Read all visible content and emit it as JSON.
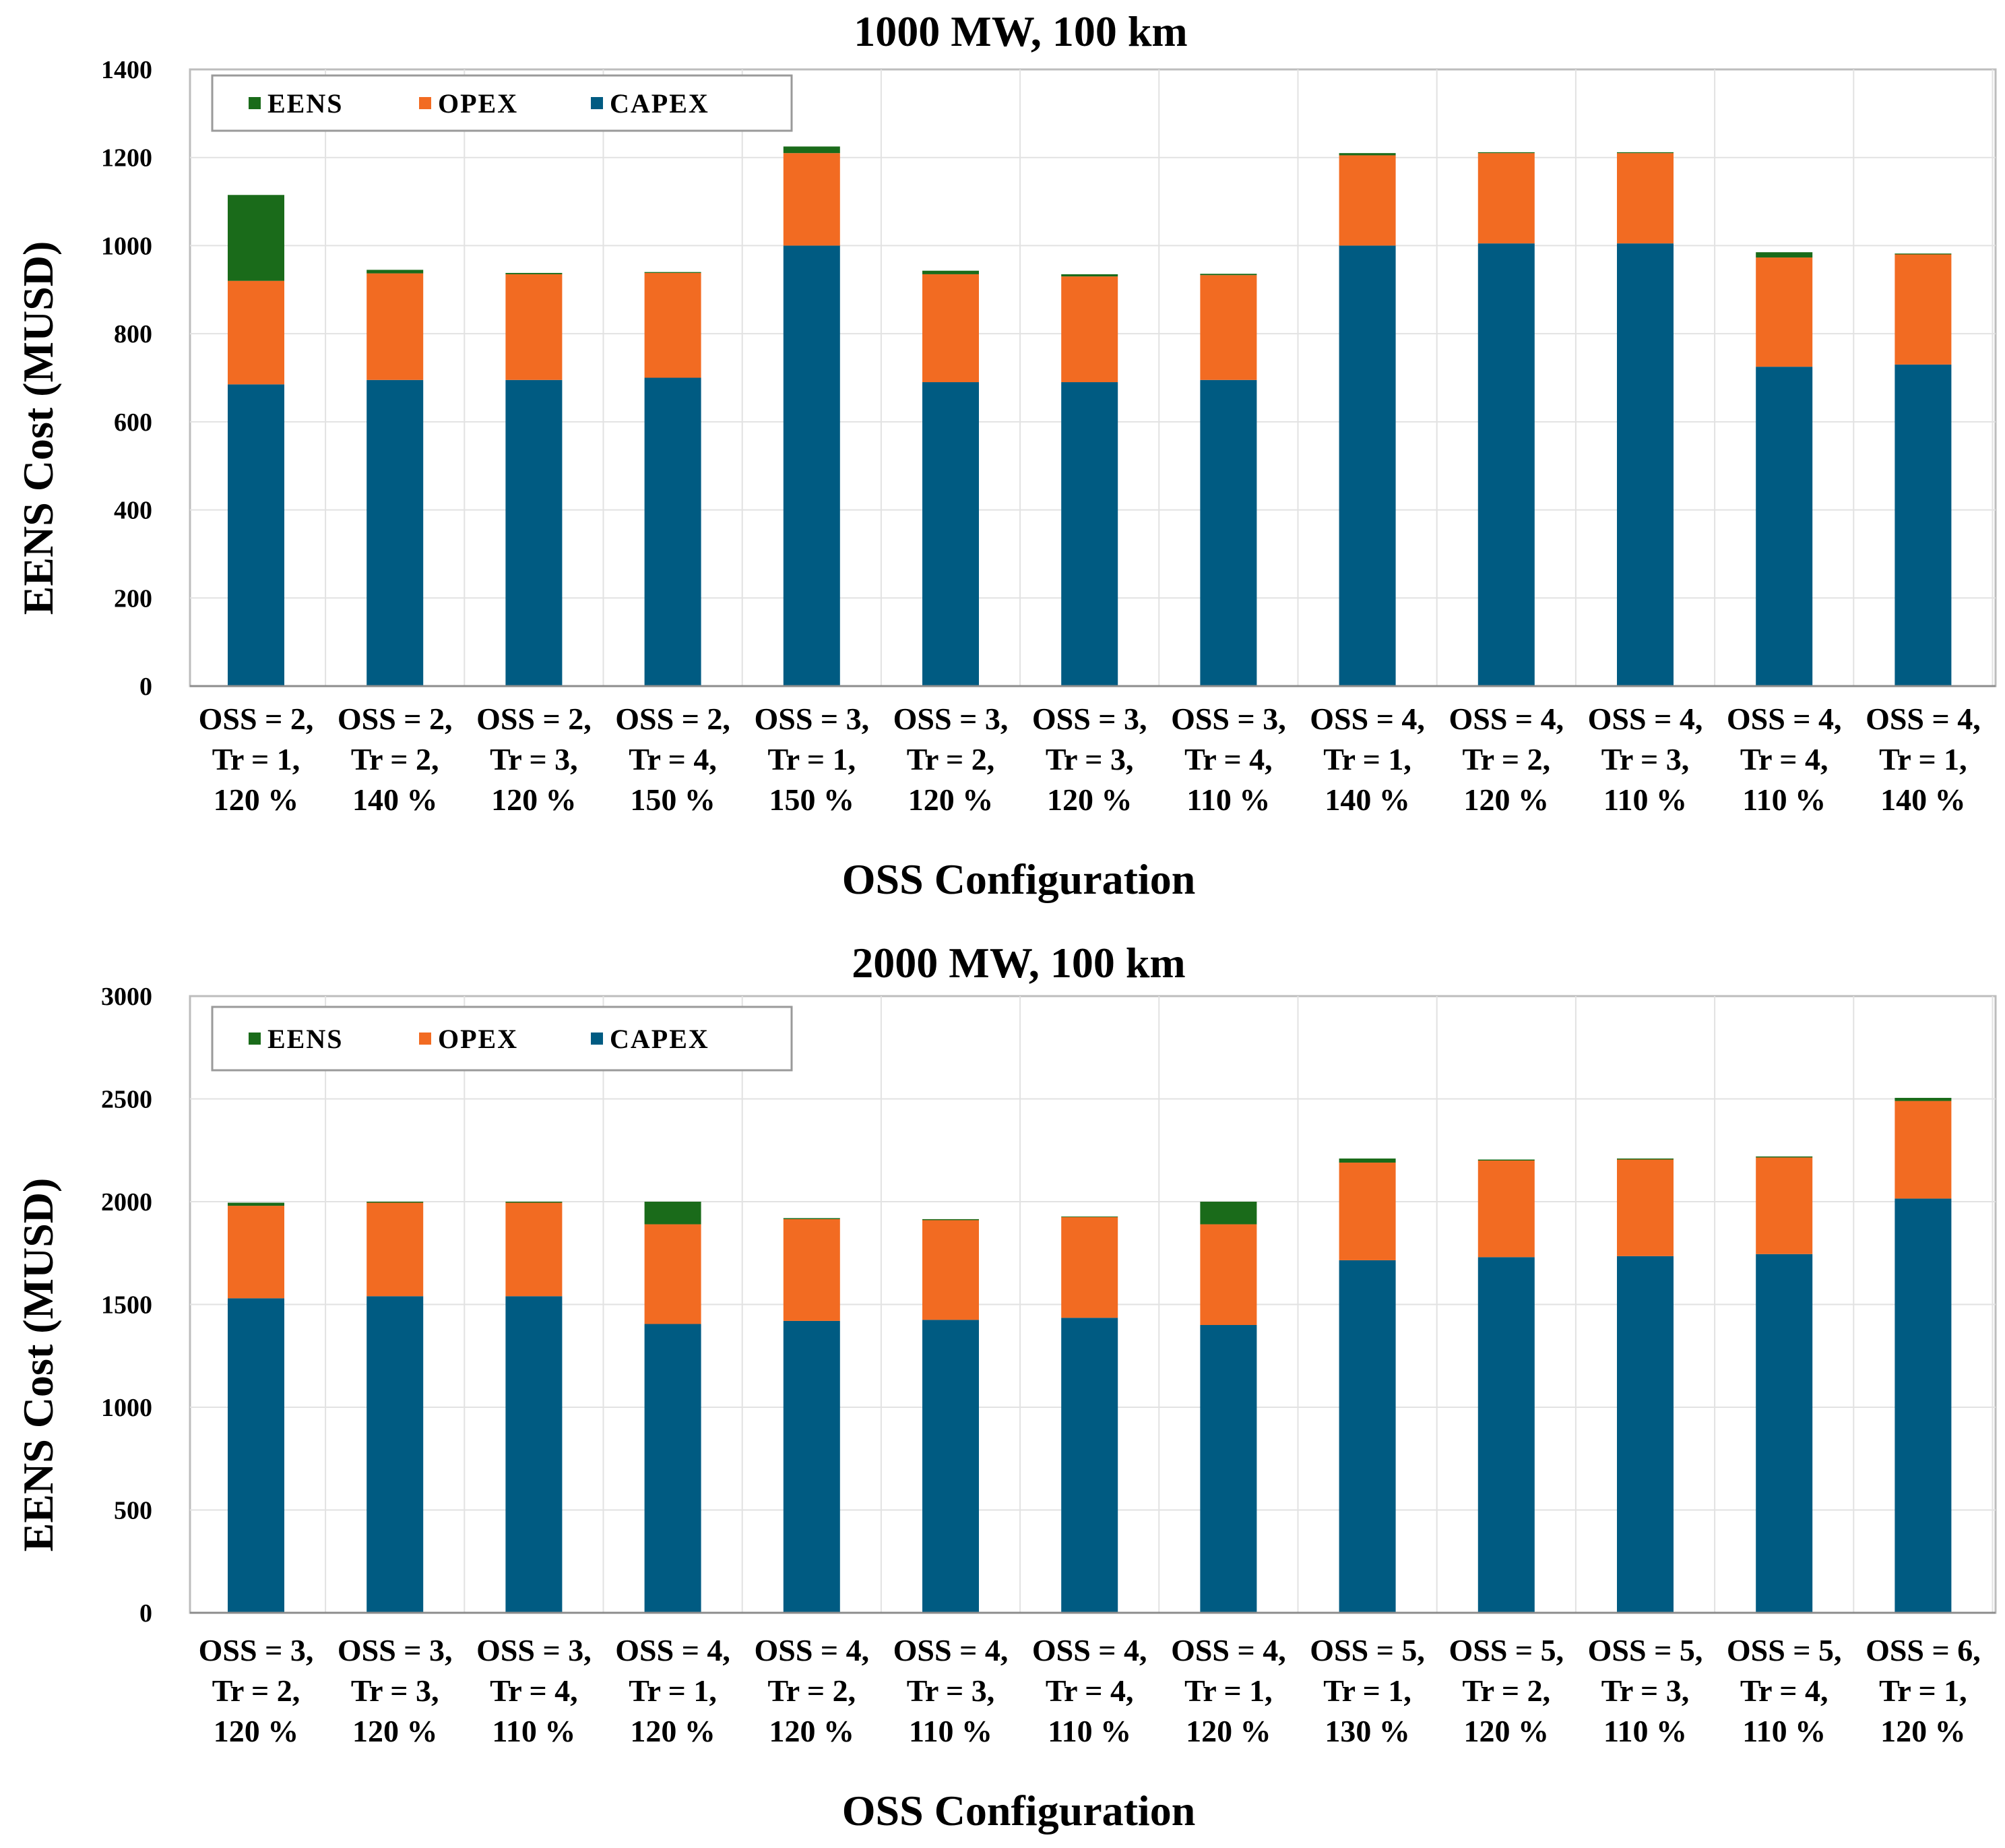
{
  "chart_data": [
    {
      "type": "bar",
      "stacked": true,
      "title": "1000 MW, 100 km",
      "xlabel": "OSS Configuration",
      "ylabel": "EENS Cost (MUSD)",
      "ylim": [
        0,
        1400
      ],
      "yticks": [
        0,
        200,
        400,
        600,
        800,
        1000,
        1200,
        1400
      ],
      "grid": true,
      "legend_position": "top-left",
      "categories": [
        [
          "OSS = 2,",
          "Tr = 1,",
          "120 %"
        ],
        [
          "OSS = 2,",
          "Tr = 2,",
          "140 %"
        ],
        [
          "OSS = 2,",
          "Tr = 3,",
          "120 %"
        ],
        [
          "OSS = 2,",
          "Tr = 4,",
          "150 %"
        ],
        [
          "OSS = 3,",
          "Tr = 1,",
          "150 %"
        ],
        [
          "OSS = 3,",
          "Tr = 2,",
          "120 %"
        ],
        [
          "OSS = 3,",
          "Tr = 3,",
          "120 %"
        ],
        [
          "OSS = 3,",
          "Tr = 4,",
          "110 %"
        ],
        [
          "OSS = 4,",
          "Tr = 1,",
          "140 %"
        ],
        [
          "OSS = 4,",
          "Tr = 2,",
          "120 %"
        ],
        [
          "OSS = 4,",
          "Tr = 3,",
          "110 %"
        ],
        [
          "OSS = 4,",
          "Tr = 4,",
          "110 %"
        ],
        [
          "OSS = 4,",
          "Tr = 1,",
          "140 %"
        ]
      ],
      "series": [
        {
          "name": "CAPEX",
          "color": "#005b82",
          "values": [
            685,
            695,
            695,
            700,
            1000,
            690,
            690,
            695,
            1000,
            1005,
            1005,
            725,
            730
          ]
        },
        {
          "name": "OPEX",
          "color": "#f26b22",
          "values": [
            235,
            242,
            240,
            238,
            210,
            245,
            240,
            238,
            205,
            205,
            205,
            248,
            250
          ]
        },
        {
          "name": "EENS",
          "color": "#1a6b1a",
          "values": [
            195,
            8,
            3,
            2,
            15,
            8,
            5,
            3,
            5,
            2,
            2,
            12,
            2
          ]
        }
      ],
      "legend_order": [
        "EENS",
        "OPEX",
        "CAPEX"
      ]
    },
    {
      "type": "bar",
      "stacked": true,
      "title": "2000 MW, 100 km",
      "xlabel": "OSS Configuration",
      "ylabel": "EENS Cost (MUSD)",
      "ylim": [
        0,
        3000
      ],
      "yticks": [
        0,
        500,
        1000,
        1500,
        2000,
        2500,
        3000
      ],
      "grid": true,
      "legend_position": "top-left",
      "categories": [
        [
          "OSS = 3,",
          "Tr = 2,",
          "120 %"
        ],
        [
          "OSS = 3,",
          "Tr = 3,",
          "120 %"
        ],
        [
          "OSS = 3,",
          "Tr = 4,",
          "110 %"
        ],
        [
          "OSS = 4,",
          "Tr = 1,",
          "120 %"
        ],
        [
          "OSS = 4,",
          "Tr = 2,",
          "120 %"
        ],
        [
          "OSS = 4,",
          "Tr = 3,",
          "110 %"
        ],
        [
          "OSS = 4,",
          "Tr = 4,",
          "110 %"
        ],
        [
          "OSS = 4,",
          "Tr = 1,",
          "120 %"
        ],
        [
          "OSS = 5,",
          "Tr = 1,",
          "130 %"
        ],
        [
          "OSS = 5,",
          "Tr = 2,",
          "120 %"
        ],
        [
          "OSS = 5,",
          "Tr = 3,",
          "110 %"
        ],
        [
          "OSS = 5,",
          "Tr = 4,",
          "110 %"
        ],
        [
          "OSS = 6,",
          "Tr = 1,",
          "120 %"
        ]
      ],
      "series": [
        {
          "name": "CAPEX",
          "color": "#005b82",
          "values": [
            1530,
            1540,
            1540,
            1405,
            1420,
            1425,
            1435,
            1400,
            1715,
            1730,
            1735,
            1745,
            2015
          ]
        },
        {
          "name": "OPEX",
          "color": "#f26b22",
          "values": [
            450,
            455,
            455,
            485,
            495,
            485,
            490,
            490,
            475,
            470,
            470,
            470,
            475
          ]
        },
        {
          "name": "EENS",
          "color": "#1a6b1a",
          "values": [
            15,
            5,
            5,
            110,
            5,
            5,
            3,
            110,
            20,
            5,
            5,
            5,
            15
          ]
        }
      ],
      "legend_order": [
        "EENS",
        "OPEX",
        "CAPEX"
      ]
    }
  ]
}
